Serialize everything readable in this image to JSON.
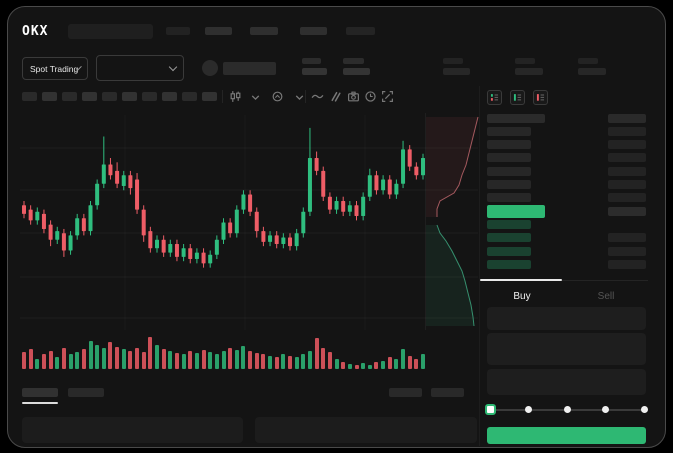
{
  "app": {
    "logo_text": "OKX"
  },
  "market_bar": {
    "pair_selector_label": "Spot Trading"
  },
  "trade_panel": {
    "tabs": [
      {
        "label": "Buy",
        "active": true
      },
      {
        "label": "Sell",
        "active": false
      }
    ],
    "slider_stops": 5,
    "slider_active_stop": 0
  },
  "order_book": {
    "view_icons": [
      "book-split-icon",
      "book-bids-icon",
      "book-asks-icon"
    ],
    "ask_rows": 6,
    "bid_rows": 4,
    "bid_amount_visible": [
      false,
      true,
      true,
      true
    ]
  },
  "toolbar": {
    "timeframe_placeholders": 10,
    "icons": [
      "candle-style-icon",
      "chevron-down-icon",
      "indicators-icon",
      "chevron-down-icon",
      "line-wave-icon",
      "compare-icon",
      "camera-icon",
      "history-clock-icon",
      "fullscreen-icon"
    ]
  },
  "colors": {
    "accent_green": "#2eb873",
    "candle_green": "#2fbe7f",
    "candle_red": "#ee5d66",
    "volume_green": "#2aa06a",
    "volume_red": "#cd5058",
    "bid_row_bar": "#1a4230",
    "ask_depth_line": "#c76a70",
    "bid_depth_line": "#3fae85",
    "grid_line": "rgba(255,255,255,0.045)"
  },
  "chart_data": {
    "type": "candlestick",
    "title": "",
    "xlabel": "",
    "ylabel": "",
    "value_range": [
      0,
      100
    ],
    "candles": [
      [
        58,
        54,
        60,
        52
      ],
      [
        56,
        51,
        58,
        49
      ],
      [
        51,
        55,
        57,
        49
      ],
      [
        54,
        47,
        56,
        45
      ],
      [
        49,
        42,
        51,
        39
      ],
      [
        42,
        46,
        48,
        40
      ],
      [
        45,
        37,
        47,
        34
      ],
      [
        37,
        44,
        46,
        35
      ],
      [
        44,
        52,
        54,
        42
      ],
      [
        52,
        46,
        54,
        44
      ],
      [
        46,
        58,
        60,
        44
      ],
      [
        58,
        68,
        70,
        56
      ],
      [
        68,
        77,
        90,
        66
      ],
      [
        77,
        72,
        80,
        70
      ],
      [
        74,
        68,
        78,
        66
      ],
      [
        67,
        72,
        74,
        65
      ],
      [
        72,
        66,
        74,
        63
      ],
      [
        70,
        56,
        73,
        54
      ],
      [
        56,
        44,
        58,
        41
      ],
      [
        46,
        38,
        48,
        36
      ],
      [
        38,
        42,
        44,
        36
      ],
      [
        42,
        36,
        44,
        34
      ],
      [
        36,
        40,
        42,
        34
      ],
      [
        40,
        34,
        42,
        32
      ],
      [
        34,
        38,
        40,
        32
      ],
      [
        38,
        33,
        40,
        31
      ],
      [
        33,
        36,
        38,
        31
      ],
      [
        36,
        31,
        38,
        29
      ],
      [
        31,
        35,
        37,
        29
      ],
      [
        35,
        42,
        44,
        33
      ],
      [
        42,
        50,
        52,
        40
      ],
      [
        50,
        45,
        52,
        43
      ],
      [
        45,
        56,
        58,
        43
      ],
      [
        56,
        63,
        65,
        54
      ],
      [
        63,
        55,
        65,
        53
      ],
      [
        55,
        46,
        57,
        43
      ],
      [
        46,
        41,
        48,
        39
      ],
      [
        41,
        44,
        46,
        39
      ],
      [
        44,
        40,
        46,
        38
      ],
      [
        40,
        43,
        45,
        38
      ],
      [
        43,
        39,
        45,
        37
      ],
      [
        39,
        45,
        47,
        37
      ],
      [
        45,
        55,
        57,
        43
      ],
      [
        55,
        80,
        94,
        53
      ],
      [
        80,
        74,
        83,
        72
      ],
      [
        74,
        62,
        76,
        60
      ],
      [
        62,
        56,
        64,
        54
      ],
      [
        56,
        60,
        62,
        54
      ],
      [
        60,
        55,
        62,
        53
      ],
      [
        55,
        58,
        60,
        53
      ],
      [
        58,
        53,
        60,
        51
      ],
      [
        53,
        62,
        64,
        51
      ],
      [
        62,
        72,
        75,
        60
      ],
      [
        72,
        65,
        74,
        63
      ],
      [
        65,
        70,
        72,
        63
      ],
      [
        70,
        63,
        72,
        61
      ],
      [
        63,
        68,
        70,
        61
      ],
      [
        68,
        84,
        88,
        66
      ],
      [
        84,
        76,
        86,
        74
      ],
      [
        76,
        72,
        78,
        70
      ],
      [
        72,
        80,
        82,
        70
      ]
    ],
    "volumes": [
      52,
      62,
      30,
      46,
      56,
      36,
      66,
      46,
      52,
      62,
      88,
      76,
      66,
      84,
      70,
      62,
      56,
      66,
      52,
      100,
      74,
      62,
      56,
      50,
      46,
      56,
      50,
      60,
      52,
      46,
      56,
      66,
      58,
      72,
      56,
      50,
      46,
      42,
      36,
      46,
      40,
      36,
      46,
      56,
      96,
      66,
      54,
      30,
      22,
      16,
      12,
      18,
      14,
      22,
      26,
      36,
      30,
      62,
      42,
      30,
      48
    ],
    "depth": {
      "asks_line": [
        [
          52,
          4
        ],
        [
          49,
          16
        ],
        [
          46,
          28
        ],
        [
          43,
          40
        ],
        [
          40,
          52
        ],
        [
          36,
          62
        ],
        [
          33,
          72
        ],
        [
          28,
          80
        ],
        [
          14,
          88
        ],
        [
          11,
          96
        ],
        [
          11,
          104
        ]
      ],
      "bids_line": [
        [
          11,
          112
        ],
        [
          14,
          120
        ],
        [
          20,
          128
        ],
        [
          26,
          138
        ],
        [
          31,
          148
        ],
        [
          36,
          158
        ],
        [
          39,
          168
        ],
        [
          42,
          180
        ],
        [
          45,
          192
        ],
        [
          47,
          204
        ],
        [
          48,
          213
        ]
      ]
    }
  }
}
